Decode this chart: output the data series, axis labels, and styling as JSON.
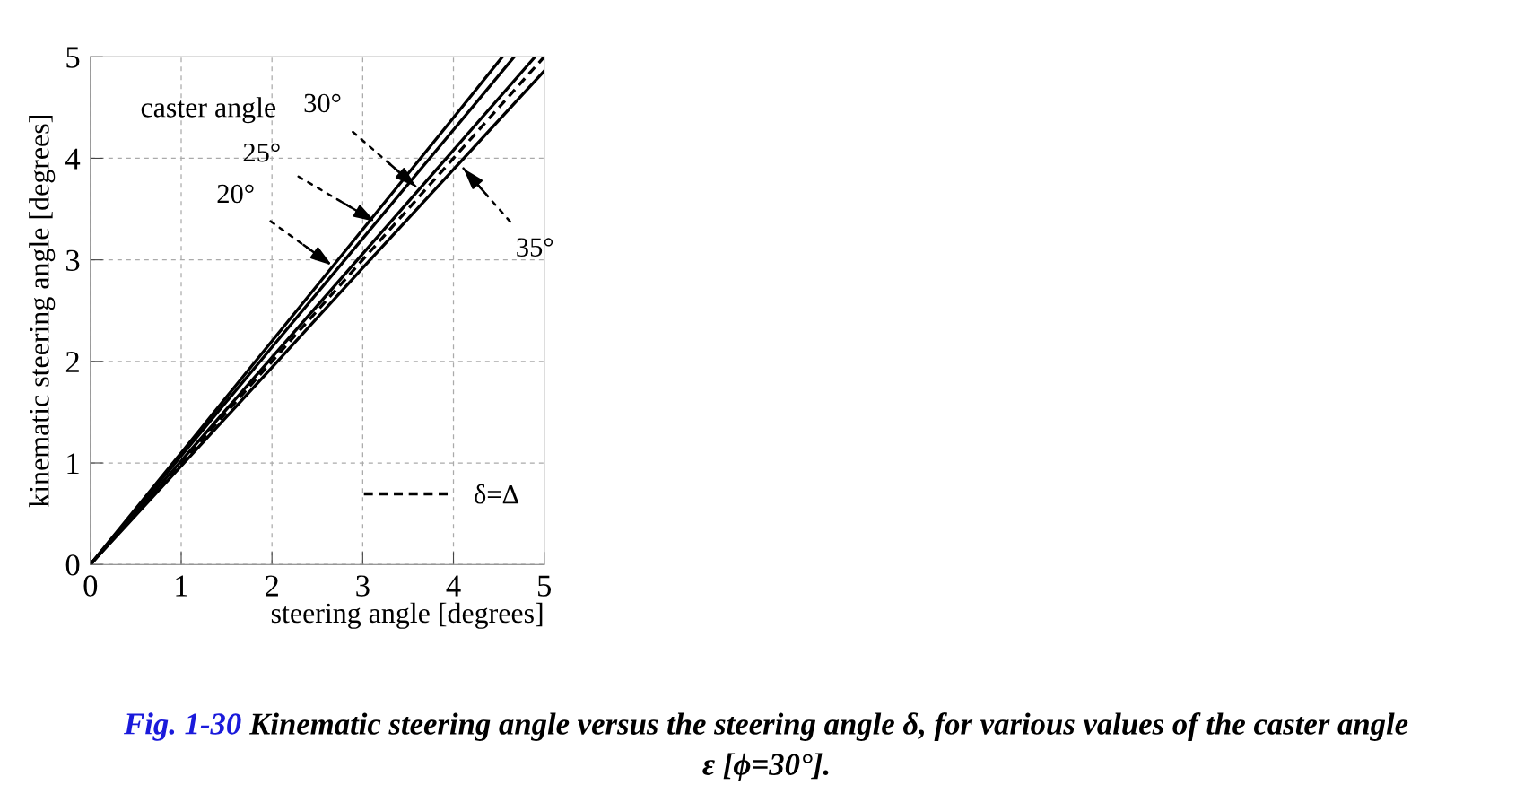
{
  "chart_data": {
    "type": "line",
    "xlabel": "steering angle [degrees]",
    "ylabel": "kinematic steering angle [degrees]",
    "xlim": [
      0,
      5
    ],
    "ylim": [
      0,
      5
    ],
    "xticks": [
      0,
      1,
      2,
      3,
      4,
      5
    ],
    "yticks": [
      0,
      1,
      2,
      3,
      4,
      5
    ],
    "grid": true,
    "legend": "bottom right",
    "line_style": "solid",
    "marker": "none",
    "series": [
      {
        "color": "#000000",
        "x": [
          0,
          1,
          2,
          3,
          4,
          4.54
        ],
        "values": [
          0,
          1.1,
          2.2,
          3.3,
          4.4,
          5.0
        ]
      },
      {
        "color": "#000000",
        "x": [
          0,
          1,
          2,
          3,
          4,
          4.67
        ],
        "values": [
          0,
          1.07,
          2.14,
          3.21,
          4.28,
          5.0
        ]
      },
      {
        "color": "#000000",
        "x": [
          0,
          1,
          2,
          3,
          4,
          4.9
        ],
        "values": [
          0,
          1.02,
          2.04,
          3.06,
          4.08,
          5.0
        ]
      },
      {
        "color": "#000000",
        "x": [
          0,
          1,
          2,
          3,
          4,
          5
        ],
        "values": [
          0,
          0.97,
          1.94,
          2.92,
          3.89,
          4.86
        ]
      },
      {
        "name": "δ=Δ",
        "color": "#000000",
        "line_style": "dashed",
        "x": [
          0,
          5
        ],
        "values": [
          0,
          5
        ]
      }
    ],
    "annotations": [
      "caster angle",
      {
        "text": "20°",
        "x": 2.67,
        "y": 2.94
      },
      {
        "text": "25°",
        "x": 3.15,
        "y": 3.37
      },
      {
        "text": "30°",
        "x": 3.6,
        "y": 3.71
      },
      {
        "text": "35°",
        "x": 4.1,
        "y": 3.91
      },
      "Fig. 1-30",
      "Kinematic steering angle versus the steering angle δ, for various values of the caster angle\nε [ϕ=30°]."
    ]
  }
}
